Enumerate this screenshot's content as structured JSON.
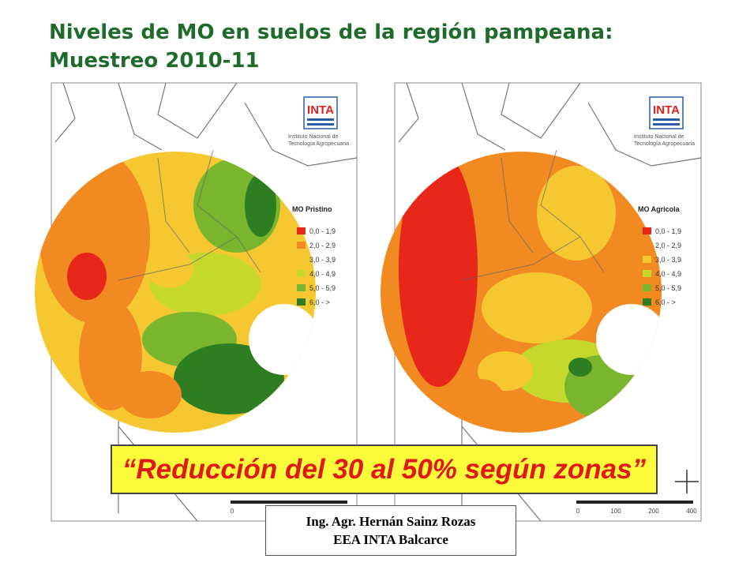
{
  "title": [
    "Niveles de MO en suelos de la región pampeana:",
    "Muestreo 2010-11"
  ],
  "maps": [
    {
      "logo": "INTA",
      "institute": [
        "Instituto Nacional de",
        "Tecnología Agropecuaria"
      ],
      "legend": {
        "title": "MO Pristino",
        "items": [
          {
            "label": "0,0 - 1,9",
            "color": "#e8261c"
          },
          {
            "label": "2,0 - 2,9",
            "color": "#f28a22"
          },
          {
            "label": "3,0 - 3,9",
            "color": "#f5c731"
          },
          {
            "label": "4,0 - 4,9",
            "color": "#c5d92c"
          },
          {
            "label": "5,0 - 5,9",
            "color": "#7ab52e"
          },
          {
            "label": "6,0 - >",
            "color": "#2e7d22"
          }
        ]
      },
      "scale": [
        "0"
      ]
    },
    {
      "logo": "INTA",
      "institute": [
        "Instituto Nacional de",
        "Tecnología Agropecuaria"
      ],
      "legend": {
        "title": "MO Agricola",
        "items": [
          {
            "label": "0,0 - 1,9",
            "color": "#e8261c"
          },
          {
            "label": "2,0 - 2,9",
            "color": "#f28a22"
          },
          {
            "label": "3,0 - 3,9",
            "color": "#f5c731"
          },
          {
            "label": "4,0 - 4,9",
            "color": "#c5d92c"
          },
          {
            "label": "5,0 - 5,9",
            "color": "#7ab52e"
          },
          {
            "label": "6,0 - >",
            "color": "#2e7d22"
          }
        ]
      },
      "scale": [
        "0",
        "100",
        "200",
        "400"
      ]
    }
  ],
  "banner": "“Reducción del 30 al 50% según zonas”",
  "credit": [
    "Ing. Agr. Hernán Sainz Rozas",
    "EEA INTA Balcarce"
  ]
}
